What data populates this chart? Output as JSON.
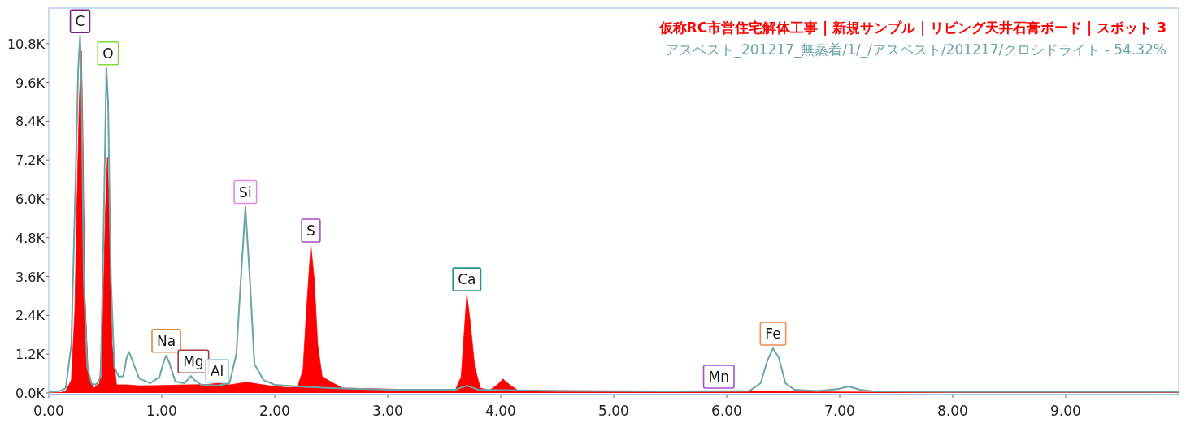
{
  "chart_data": {
    "type": "area",
    "x": [
      0,
      0.1,
      0.15,
      0.2,
      0.23,
      0.25,
      0.27,
      0.288,
      0.3,
      0.32,
      0.35,
      0.4,
      0.45,
      0.48,
      0.5,
      0.52,
      0.54,
      0.56,
      0.6,
      0.7,
      0.8,
      1.0,
      1.2,
      1.4,
      1.5,
      1.6,
      1.75,
      1.9,
      2.0,
      2.1,
      2.2,
      2.25,
      2.28,
      2.32,
      2.35,
      2.38,
      2.42,
      2.47,
      2.52,
      2.6,
      3.0,
      3.4,
      3.6,
      3.65,
      3.7,
      3.73,
      3.77,
      3.82,
      3.9,
      3.97,
      4.02,
      4.08,
      4.15,
      5.0,
      6.0,
      6.4,
      7.0,
      8.0,
      9.0,
      10.0
    ],
    "series": [
      {
        "name": "仮称RC市営住宅解体工事 | 新規サンプル | リビング天井石膏ボード | スポット 3",
        "color": "#ff0000",
        "values": [
          0,
          10,
          50,
          400,
          2500,
          6000,
          9000,
          10580,
          8500,
          3000,
          500,
          150,
          300,
          2500,
          5500,
          7300,
          5000,
          1500,
          250,
          250,
          220,
          230,
          250,
          260,
          300,
          250,
          330,
          250,
          200,
          170,
          180,
          700,
          2500,
          4570,
          3500,
          1500,
          500,
          400,
          300,
          150,
          120,
          90,
          100,
          500,
          3060,
          2200,
          800,
          150,
          80,
          250,
          430,
          250,
          80,
          60,
          50,
          50,
          30,
          20,
          20,
          10
        ]
      },
      {
        "name": "アスベスト_201217_無蒸着/1/_/アスベスト/201217/クロシドライト - 54.32%",
        "type": "line",
        "color": "#6aa5a8",
        "x": [
          0,
          0.1,
          0.15,
          0.2,
          0.24,
          0.26,
          0.277,
          0.29,
          0.31,
          0.34,
          0.38,
          0.42,
          0.46,
          0.49,
          0.51,
          0.525,
          0.55,
          0.58,
          0.62,
          0.66,
          0.69,
          0.71,
          0.74,
          0.8,
          0.9,
          0.98,
          1.02,
          1.04,
          1.07,
          1.12,
          1.2,
          1.24,
          1.26,
          1.29,
          1.35,
          1.5,
          1.6,
          1.66,
          1.7,
          1.74,
          1.78,
          1.82,
          1.9,
          2.0,
          2.2,
          2.5,
          3.0,
          3.6,
          3.7,
          3.8,
          4.5,
          5.5,
          6.2,
          6.3,
          6.36,
          6.41,
          6.46,
          6.52,
          6.6,
          6.8,
          6.98,
          7.08,
          7.18,
          7.3,
          8,
          9,
          10
        ],
        "values": [
          40,
          60,
          150,
          1500,
          7000,
          10000,
          11040,
          9500,
          3500,
          800,
          280,
          260,
          500,
          6000,
          10050,
          9000,
          3500,
          800,
          500,
          520,
          1100,
          1270,
          1000,
          450,
          300,
          500,
          1000,
          1160,
          900,
          350,
          300,
          450,
          520,
          400,
          250,
          230,
          300,
          1200,
          3500,
          5760,
          3500,
          900,
          400,
          250,
          200,
          150,
          100,
          100,
          230,
          100,
          60,
          50,
          60,
          300,
          1000,
          1380,
          1100,
          300,
          100,
          60,
          120,
          200,
          100,
          50,
          40,
          40,
          40
        ]
      }
    ],
    "xlim": [
      0,
      10
    ],
    "ylim": [
      0,
      11900
    ],
    "xticks": [
      {
        "value": 0,
        "label": "0.00"
      },
      {
        "value": 1,
        "label": "1.00"
      },
      {
        "value": 2,
        "label": "2.00"
      },
      {
        "value": 3,
        "label": "3.00"
      },
      {
        "value": 4,
        "label": "4.00"
      },
      {
        "value": 5,
        "label": "5.00"
      },
      {
        "value": 6,
        "label": "6.00"
      },
      {
        "value": 7,
        "label": "7.00"
      },
      {
        "value": 8,
        "label": "8.00"
      },
      {
        "value": 9,
        "label": "9.00"
      }
    ],
    "yticks": [
      {
        "value": 0,
        "label": "0.0K"
      },
      {
        "value": 1200,
        "label": "1.2K"
      },
      {
        "value": 2400,
        "label": "2.4K"
      },
      {
        "value": 3600,
        "label": "3.6K"
      },
      {
        "value": 4800,
        "label": "4.8K"
      },
      {
        "value": 6000,
        "label": "6.0K"
      },
      {
        "value": 7200,
        "label": "7.2K"
      },
      {
        "value": 8400,
        "label": "8.4K"
      },
      {
        "value": 9600,
        "label": "9.6K"
      },
      {
        "value": 10800,
        "label": "10.8K"
      }
    ],
    "legend": "top right",
    "annotations": [
      {
        "text": "C",
        "x": 0.277,
        "y": 11040
      },
      {
        "text": "O",
        "x": 0.525,
        "y": 10050
      },
      {
        "text": "Na",
        "x": 1.04,
        "y": 1160
      },
      {
        "text": "Mg",
        "x": 1.28,
        "y": 520
      },
      {
        "text": "Al",
        "x": 1.49,
        "y": 230
      },
      {
        "text": "Si",
        "x": 1.74,
        "y": 5760
      },
      {
        "text": "S",
        "x": 2.32,
        "y": 4570
      },
      {
        "text": "Ca",
        "x": 3.7,
        "y": 3060
      },
      {
        "text": "Mn",
        "x": 5.93,
        "y": 50
      },
      {
        "text": "Fe",
        "x": 6.41,
        "y": 1380
      }
    ]
  }
}
